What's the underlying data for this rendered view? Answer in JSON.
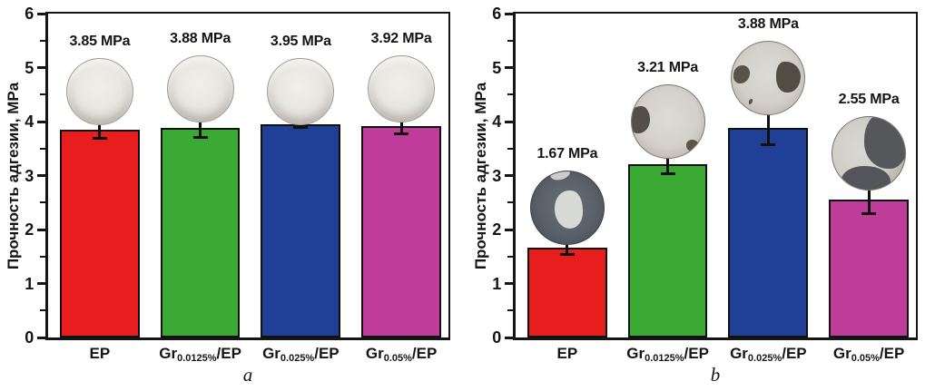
{
  "chart_data": [
    {
      "type": "bar",
      "panel_caption": "a",
      "title": "",
      "xlabel": "",
      "ylabel": "Прочность адгезии, MPa",
      "ylim": [
        0,
        6
      ],
      "yticks": [
        0,
        1,
        2,
        3,
        4,
        5,
        6
      ],
      "grid": false,
      "legend": null,
      "categories": [
        "EP",
        "Gr0.0125%/EP",
        "Gr0.025%/EP",
        "Gr0.05%/EP"
      ],
      "categories_rich": [
        {
          "main": "EP",
          "sub": "",
          "tail": ""
        },
        {
          "main": "Gr",
          "sub": "0.0125%",
          "tail": "/EP"
        },
        {
          "main": "Gr",
          "sub": "0.025%",
          "tail": "/EP"
        },
        {
          "main": "Gr",
          "sub": "0.05%",
          "tail": "/EP"
        }
      ],
      "values": [
        3.85,
        3.88,
        3.95,
        3.92
      ],
      "errors": [
        0.18,
        0.2,
        0.08,
        0.17
      ],
      "value_labels": [
        "3.85 MPa",
        "3.88 MPa",
        "3.95 MPa",
        "3.92 MPa"
      ],
      "bar_colors": [
        "#e81d1d",
        "#3aaa35",
        "#204098",
        "#c03c9a"
      ],
      "specimens": [
        "clean-light-epoxy-disc",
        "clean-light-epoxy-disc",
        "clean-light-epoxy-disc",
        "clean-light-epoxy-disc"
      ]
    },
    {
      "type": "bar",
      "panel_caption": "b",
      "title": "",
      "xlabel": "",
      "ylabel": "Прочность адгезии, MPa",
      "ylim": [
        0,
        6
      ],
      "yticks": [
        0,
        1,
        2,
        3,
        4,
        5,
        6
      ],
      "grid": false,
      "legend": null,
      "categories": [
        "EP",
        "Gr0.0125%/EP",
        "Gr0.025%/EP",
        "Gr0.05%/EP"
      ],
      "categories_rich": [
        {
          "main": "EP",
          "sub": "",
          "tail": ""
        },
        {
          "main": "Gr",
          "sub": "0.0125%",
          "tail": "/EP"
        },
        {
          "main": "Gr",
          "sub": "0.025%",
          "tail": "/EP"
        },
        {
          "main": "Gr",
          "sub": "0.05%",
          "tail": "/EP"
        }
      ],
      "values": [
        1.67,
        3.21,
        3.88,
        2.55
      ],
      "errors": [
        0.15,
        0.2,
        0.34,
        0.28
      ],
      "value_labels": [
        "1.67 MPa",
        "3.21 MPa",
        "3.88 MPa",
        "2.55 MPa"
      ],
      "bar_colors": [
        "#e81d1d",
        "#3aaa35",
        "#204098",
        "#c03c9a"
      ],
      "specimens": [
        "dark-disc-with-light-center-blob",
        "light-disc-with-dark-left-patch",
        "light-disc-with-two-dark-patches",
        "half-dark-disc-with-light-left-blob"
      ]
    }
  ]
}
